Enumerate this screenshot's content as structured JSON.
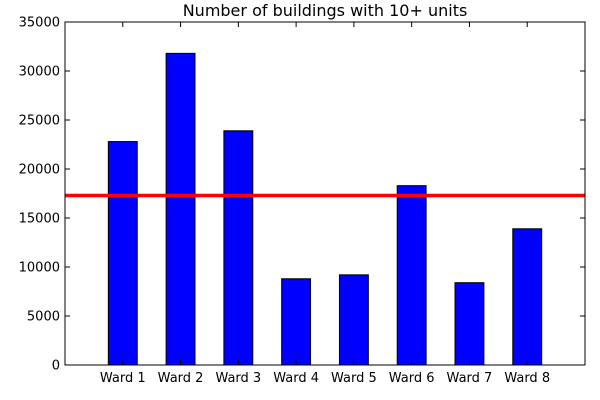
{
  "chart_data": {
    "type": "bar",
    "title": "Number of buildings with 10+ units",
    "xlabel": "",
    "ylabel": "",
    "categories": [
      "Ward 1",
      "Ward 2",
      "Ward 3",
      "Ward 4",
      "Ward 5",
      "Ward 6",
      "Ward 7",
      "Ward 8"
    ],
    "values": [
      22800,
      31800,
      23900,
      8800,
      9200,
      18300,
      8400,
      13900
    ],
    "reference_line": {
      "y": 17300,
      "color": "#ff0000"
    },
    "ylim": [
      0,
      35000
    ],
    "yticks": [
      0,
      5000,
      10000,
      15000,
      20000,
      25000,
      30000,
      35000
    ],
    "ytick_labels": [
      "0",
      "5000",
      "10000",
      "15000",
      "20000",
      "25000",
      "30000",
      "35000"
    ],
    "bar_color": "#0000ff",
    "grid": false,
    "legend": "none"
  }
}
